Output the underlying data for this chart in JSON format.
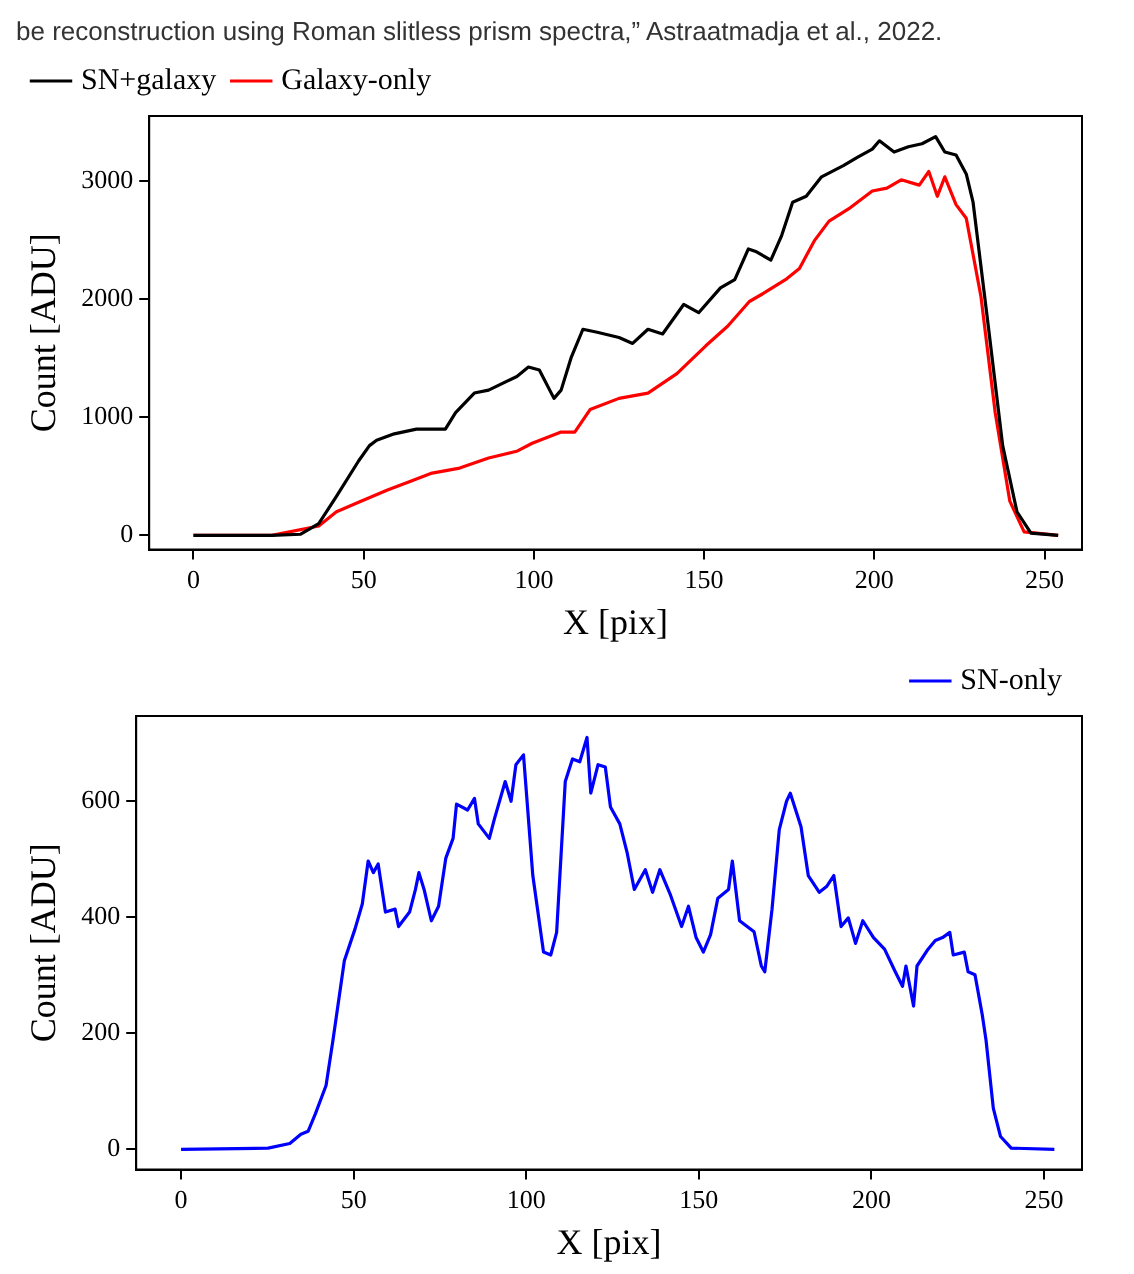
{
  "chart_data": [
    {
      "type": "line",
      "annotations": [
        "be reconstruction using Roman slitless prism spectra,” Astraatmadja et al., 2022."
      ],
      "xlabel": "X [pix]",
      "ylabel": "Count [ADU]",
      "xlim": [
        -13,
        261
      ],
      "xticks": [
        0,
        50,
        100,
        150,
        200,
        250
      ],
      "ylim": [
        -120,
        3550
      ],
      "yticks": [
        0,
        1000,
        2000,
        3000
      ],
      "grid": false,
      "legend": "top left",
      "marker": "none",
      "line_style": "solid",
      "series": [
        {
          "name": "SN+galaxy",
          "color": "#000000",
          "x": [
            0,
            23,
            31.5,
            36.8,
            42,
            48.5,
            51.7,
            53.8,
            59,
            65.5,
            74,
            77,
            82.5,
            86.7,
            95,
            98.4,
            101.6,
            105.9,
            108,
            111,
            114.4,
            118.6,
            125,
            129,
            133.5,
            137.8,
            144,
            148.4,
            154.8,
            159,
            163,
            165.4,
            169.6,
            172.8,
            176,
            180,
            184.5,
            190.9,
            195,
            199.4,
            201.5,
            205.8,
            210,
            214,
            218,
            220.7,
            224,
            227,
            229,
            233.4,
            237.7,
            241.9,
            246,
            254
          ],
          "values": [
            0,
            0,
            10,
            100,
            330,
            630,
            760,
            805,
            860,
            900,
            900,
            1040,
            1205,
            1230,
            1345,
            1425,
            1400,
            1160,
            1230,
            1510,
            1745,
            1720,
            1675,
            1625,
            1745,
            1705,
            1955,
            1885,
            2095,
            2165,
            2425,
            2400,
            2330,
            2540,
            2820,
            2870,
            3035,
            3130,
            3200,
            3270,
            3340,
            3245,
            3290,
            3315,
            3375,
            3245,
            3220,
            3060,
            2820,
            1790,
            760,
            200,
            20,
            0
          ]
        },
        {
          "name": "Galaxy-only",
          "color": "#ff0000",
          "x": [
            0,
            23,
            36.8,
            42,
            48.5,
            57,
            63.4,
            69.7,
            78.2,
            86.7,
            95.2,
            99.5,
            108,
            112,
            116.5,
            125,
            133.5,
            142,
            150.5,
            156.9,
            163.3,
            167.5,
            173.9,
            178,
            182.4,
            186.7,
            193,
            199.4,
            203.7,
            207.9,
            213.2,
            216,
            218.5,
            220.7,
            224,
            227,
            231.3,
            235.5,
            239.8,
            244,
            254
          ],
          "values": [
            0,
            0,
            80,
            200,
            280,
            385,
            455,
            525,
            570,
            655,
            715,
            780,
            875,
            875,
            1065,
            1160,
            1205,
            1370,
            1605,
            1770,
            1980,
            2050,
            2165,
            2260,
            2495,
            2660,
            2775,
            2915,
            2940,
            3010,
            2965,
            3080,
            2870,
            3035,
            2800,
            2685,
            2025,
            1040,
            290,
            30,
            0
          ]
        }
      ]
    },
    {
      "type": "line",
      "xlabel": "X [pix]",
      "ylabel": "Count [ADU]",
      "xlim": [
        -13,
        261
      ],
      "xticks": [
        0,
        50,
        100,
        150,
        200,
        250
      ],
      "ylim": [
        -35,
        747
      ],
      "yticks": [
        0,
        200,
        400,
        600
      ],
      "grid": false,
      "legend": "top right",
      "marker": "none",
      "line_style": "solid",
      "series": [
        {
          "name": "SN-only",
          "color": "#0000ff",
          "x": [
            0,
            25.2,
            31.5,
            34.7,
            36.8,
            38.9,
            42,
            44,
            47.3,
            50.4,
            52.5,
            54.2,
            55.7,
            57.1,
            59.2,
            62,
            63,
            66.2,
            67.9,
            68.9,
            70.4,
            72.5,
            74.6,
            76.7,
            78.8,
            79.8,
            83,
            85,
            86.1,
            89.3,
            90.8,
            93.9,
            95.6,
            97,
            99.2,
            101.9,
            105,
            107.1,
            108.8,
            111.3,
            113.4,
            115.5,
            117.6,
            118.7,
            120.8,
            122.9,
            124.4,
            127.1,
            129.2,
            131.3,
            134.5,
            136.6,
            138.7,
            141.8,
            145,
            147,
            149.2,
            151.3,
            153.4,
            155.5,
            158.6,
            159.7,
            161.8,
            166,
            168.1,
            169.1,
            171.2,
            173.3,
            175.4,
            176.5,
            179.6,
            181.7,
            184.9,
            187,
            189.1,
            191.2,
            193.3,
            195.4,
            197.5,
            200.6,
            203.8,
            206.9,
            209,
            210,
            212.2,
            213.2,
            216.4,
            218.5,
            220.6,
            222.7,
            223.7,
            226.9,
            228,
            230,
            232.1,
            233.2,
            235.3,
            237.4,
            240.5,
            253
          ],
          "values": [
            0,
            2,
            10,
            26,
            31,
            61,
            110,
            188,
            325,
            380,
            423,
            497,
            477,
            492,
            409,
            414,
            384,
            409,
            448,
            477,
            448,
            394,
            419,
            502,
            536,
            595,
            585,
            605,
            561,
            536,
            570,
            634,
            600,
            663,
            680,
            472,
            340,
            335,
            374,
            634,
            673,
            668,
            710,
            614,
            663,
            659,
            590,
            561,
            512,
            448,
            482,
            443,
            482,
            438,
            384,
            419,
            365,
            340,
            370,
            433,
            448,
            497,
            394,
            375,
            316,
            306,
            414,
            551,
            600,
            614,
            556,
            472,
            443,
            453,
            472,
            384,
            399,
            355,
            394,
            365,
            345,
            306,
            281,
            316,
            247,
            316,
            345,
            360,
            365,
            374,
            335,
            340,
            306,
            301,
            232,
            188,
            71,
            22,
            2,
            0
          ]
        }
      ]
    }
  ]
}
